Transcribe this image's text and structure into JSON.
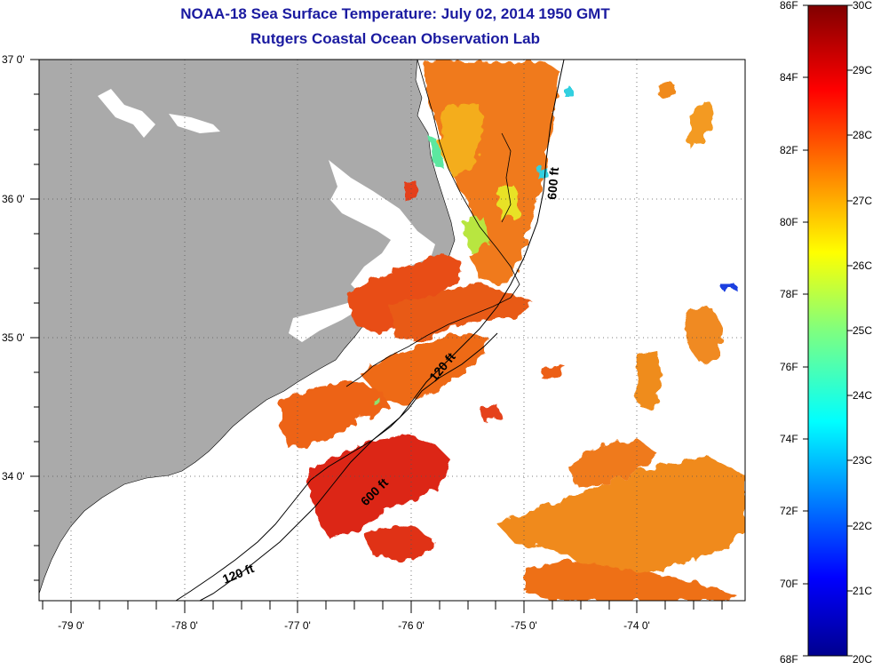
{
  "header": {
    "title": "NOAA-18 Sea Surface Temperature:  July 02, 2014 1950 GMT",
    "subtitle": "Rutgers Coastal Ocean Observation Lab"
  },
  "map": {
    "lon_range": [
      -79.3,
      -73.0
    ],
    "lat_range": [
      33.1,
      37.0
    ],
    "lon_ticks": [
      "-79 0'",
      "-78 0'",
      "-77 0'",
      "-76 0'",
      "-75 0'",
      "-74 0'"
    ],
    "lat_ticks": [
      "37 0'",
      "36 0'",
      "35 0'",
      "34 0'"
    ],
    "contours": [
      {
        "label": "600 ft"
      },
      {
        "label": "120 ft"
      },
      {
        "label": "600 ft"
      },
      {
        "label": "120 ft"
      }
    ],
    "land_color": "#aaaaaa"
  },
  "colorbar": {
    "fahrenheit": [
      "86F",
      "84F",
      "82F",
      "80F",
      "78F",
      "76F",
      "74F",
      "72F",
      "70F",
      "68F"
    ],
    "celsius": [
      "30C",
      "29C",
      "28C",
      "27C",
      "26C",
      "25C",
      "24C",
      "23C",
      "22C",
      "21C",
      "20C"
    ]
  }
}
